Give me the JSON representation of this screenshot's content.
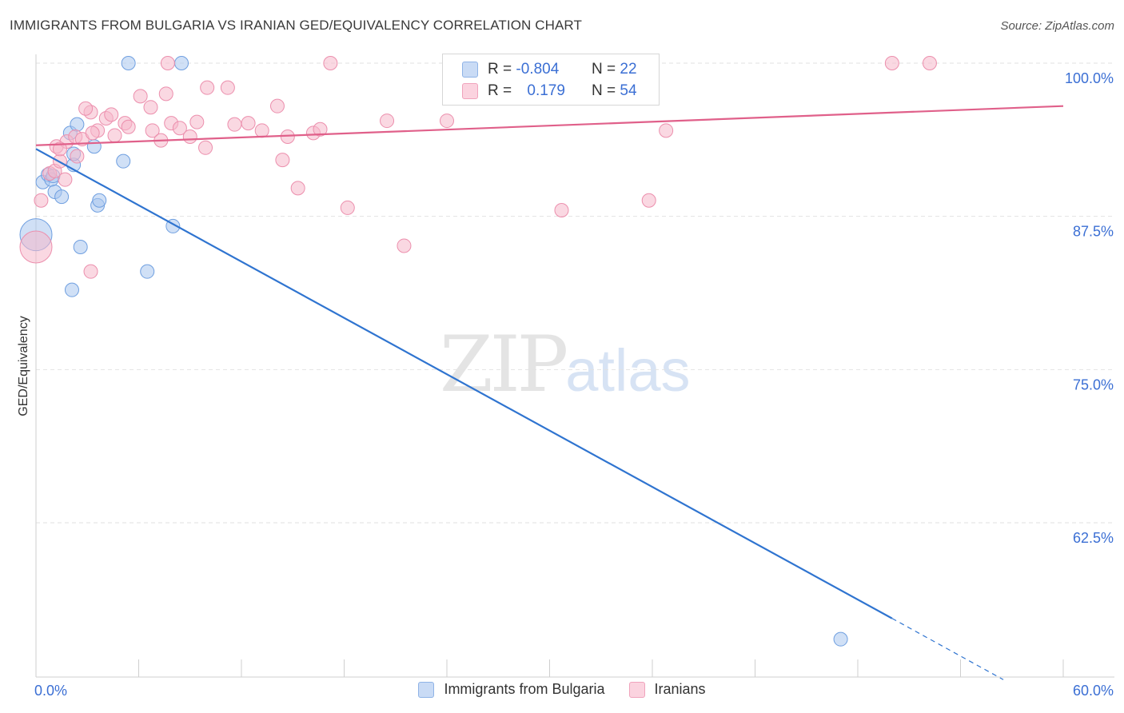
{
  "title": "IMMIGRANTS FROM BULGARIA VS IRANIAN GED/EQUIVALENCY CORRELATION CHART",
  "source": "Source: ZipAtlas.com",
  "watermark": {
    "zip": "ZIP",
    "atlas": "atlas"
  },
  "legend": {
    "rows": [
      {
        "r_label": "R =",
        "r_value": "-0.804",
        "n_label": "N =",
        "n_value": "22",
        "color": "#a9c6ee"
      },
      {
        "r_label": "R =",
        "r_value": "0.179",
        "n_label": "N =",
        "n_value": "54",
        "color": "#f5b8cb"
      }
    ]
  },
  "bottom_legend": [
    {
      "label": "Immigrants from Bulgaria",
      "color": "#a9c6ee"
    },
    {
      "label": "Iranians",
      "color": "#f5b8cb"
    }
  ],
  "chart_data": {
    "type": "scatter",
    "title": "IMMIGRANTS FROM BULGARIA VS IRANIAN GED/EQUIVALENCY CORRELATION CHART",
    "ylabel": "GED/Equivalency",
    "xlabel": "",
    "xlim": [
      0,
      60
    ],
    "ylim": [
      50,
      100
    ],
    "x_tick_labels": [
      "0.0%",
      "60.0%"
    ],
    "y_tick_labels": [
      "100.0%",
      "87.5%",
      "75.0%",
      "62.5%"
    ],
    "y_ticks": [
      100,
      87.5,
      75,
      62.5
    ],
    "grid": true,
    "series": [
      {
        "name": "Immigrants from Bulgaria",
        "color": "#6f9fe0",
        "fill": "#a9c6ee",
        "line_color": "#2f74d0",
        "points": [
          [
            0.0,
            86.0
          ],
          [
            0.4,
            90.3
          ],
          [
            0.7,
            90.9
          ],
          [
            0.9,
            90.5
          ],
          [
            1.1,
            89.5
          ],
          [
            1.5,
            89.1
          ],
          [
            1.0,
            90.8
          ],
          [
            2.2,
            91.7
          ],
          [
            2.6,
            85.0
          ],
          [
            2.0,
            94.3
          ],
          [
            2.4,
            95.0
          ],
          [
            2.2,
            92.6
          ],
          [
            3.4,
            93.2
          ],
          [
            3.6,
            88.4
          ],
          [
            3.7,
            88.8
          ],
          [
            5.1,
            92.0
          ],
          [
            6.5,
            83.0
          ],
          [
            8.0,
            86.7
          ],
          [
            5.4,
            100.0
          ],
          [
            8.5,
            100.0
          ],
          [
            2.1,
            81.5
          ],
          [
            47.0,
            53.0
          ]
        ],
        "trend": {
          "x": [
            0,
            50
          ],
          "y": [
            93.0,
            54.7
          ]
        },
        "trend_dashed": {
          "x": [
            50,
            56.5
          ],
          "y": [
            54.7,
            49.7
          ]
        }
      },
      {
        "name": "Iranians",
        "color": "#ec8fad",
        "fill": "#f5b8cb",
        "line_color": "#e0608a",
        "points": [
          [
            0.0,
            85.0
          ],
          [
            0.3,
            88.8
          ],
          [
            1.2,
            93.2
          ],
          [
            1.8,
            93.6
          ],
          [
            0.8,
            91.0
          ],
          [
            1.1,
            91.2
          ],
          [
            1.4,
            92.0
          ],
          [
            2.3,
            94.0
          ],
          [
            3.2,
            96.0
          ],
          [
            3.6,
            94.5
          ],
          [
            4.1,
            95.5
          ],
          [
            4.6,
            94.1
          ],
          [
            5.2,
            95.1
          ],
          [
            5.4,
            94.8
          ],
          [
            6.1,
            97.3
          ],
          [
            6.7,
            96.4
          ],
          [
            6.8,
            94.5
          ],
          [
            7.3,
            93.7
          ],
          [
            7.9,
            95.1
          ],
          [
            7.6,
            97.5
          ],
          [
            8.4,
            94.7
          ],
          [
            9.0,
            94.0
          ],
          [
            9.4,
            95.2
          ],
          [
            9.9,
            93.1
          ],
          [
            10.0,
            98.0
          ],
          [
            11.2,
            98.0
          ],
          [
            11.6,
            95.0
          ],
          [
            12.4,
            95.1
          ],
          [
            13.2,
            94.5
          ],
          [
            14.4,
            92.1
          ],
          [
            14.1,
            96.5
          ],
          [
            14.7,
            94.0
          ],
          [
            15.3,
            89.8
          ],
          [
            16.2,
            94.3
          ],
          [
            16.6,
            94.6
          ],
          [
            17.2,
            100.0
          ],
          [
            18.2,
            88.2
          ],
          [
            20.5,
            95.3
          ],
          [
            21.5,
            85.1
          ],
          [
            24.0,
            95.3
          ],
          [
            30.7,
            88.0
          ],
          [
            35.8,
            88.8
          ],
          [
            36.8,
            94.5
          ],
          [
            50.0,
            100.0
          ],
          [
            52.2,
            100.0
          ],
          [
            7.7,
            100.0
          ],
          [
            1.4,
            93.0
          ],
          [
            2.7,
            93.8
          ],
          [
            3.3,
            94.3
          ],
          [
            4.4,
            95.8
          ],
          [
            2.9,
            96.3
          ],
          [
            1.7,
            90.5
          ],
          [
            2.4,
            92.4
          ],
          [
            3.2,
            83.0
          ]
        ],
        "trend": {
          "x": [
            0,
            60
          ],
          "y": [
            93.3,
            96.5
          ]
        }
      }
    ]
  }
}
